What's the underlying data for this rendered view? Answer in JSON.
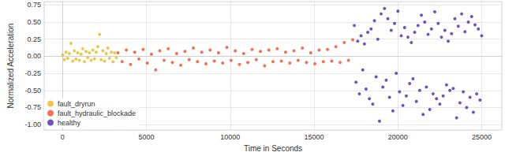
{
  "chart_data": {
    "type": "scatter",
    "x_label": "Time in Seconds",
    "y_label": "Normalized Acceleration",
    "xlim": [
      -1100,
      26200
    ],
    "xticks": [
      0,
      5000,
      10000,
      15000,
      20000,
      25000
    ],
    "ylim": [
      -1.08,
      0.8
    ],
    "yticks": [
      {
        "value": -1.0,
        "label": "-1.00"
      },
      {
        "value": -0.75,
        "label": "-0.75"
      },
      {
        "value": -0.5,
        "label": "-0.50"
      },
      {
        "value": -0.25,
        "label": "-0.25"
      },
      {
        "value": 0.0,
        "label": "0.00"
      },
      {
        "value": 0.25,
        "label": "0.25"
      },
      {
        "value": 0.5,
        "label": "0.50"
      },
      {
        "value": 0.75,
        "label": "0.75"
      }
    ],
    "grid": true,
    "legend": "lower left",
    "marker": "circle",
    "series": [
      {
        "name": "fault_dryrun",
        "color": "#e6b91e",
        "x": [
          0,
          100,
          200,
          300,
          400,
          500,
          600,
          700,
          800,
          900,
          1000,
          1100,
          1200,
          1300,
          1400,
          1500,
          1600,
          1700,
          1800,
          1900,
          2000,
          2100,
          2200,
          2300,
          2400,
          2500,
          2600,
          2700,
          2800,
          2900,
          3000,
          3100,
          3200
        ],
        "values": [
          0.02,
          -0.05,
          0.06,
          -0.03,
          0.04,
          0.19,
          -0.07,
          0.08,
          -0.04,
          0.05,
          -0.06,
          0.03,
          0.11,
          -0.08,
          0.07,
          -0.02,
          0.05,
          -0.06,
          0.09,
          -0.04,
          0.06,
          0.14,
          0.32,
          -0.05,
          0.08,
          -0.07,
          0.04,
          0.12,
          -0.03,
          0.06,
          -0.08,
          0.05,
          -0.02
        ]
      },
      {
        "name": "fault_hydraulic_blockade",
        "color": "#f24a2a",
        "x": [
          3300,
          3550,
          3800,
          4050,
          4300,
          4550,
          4800,
          5050,
          5300,
          5550,
          5800,
          6050,
          6300,
          6550,
          6800,
          7050,
          7300,
          7550,
          7800,
          8050,
          8300,
          8550,
          8800,
          9050,
          9300,
          9550,
          9800,
          10050,
          10300,
          10550,
          10800,
          11050,
          11300,
          11550,
          11800,
          12050,
          12300,
          12550,
          12800,
          13050,
          13300,
          13550,
          13800,
          14050,
          14300,
          14550,
          14800,
          15050,
          15300,
          15550,
          15800,
          16050,
          16300,
          16550,
          16800,
          17050,
          17300
        ],
        "values": [
          0.05,
          -0.08,
          0.09,
          -0.12,
          0.06,
          -0.04,
          0.1,
          -0.1,
          0.03,
          -0.2,
          0.08,
          -0.06,
          0.11,
          -0.09,
          0.04,
          -0.13,
          0.07,
          -0.05,
          0.12,
          -0.08,
          0.06,
          -0.11,
          0.09,
          -0.07,
          0.05,
          -0.1,
          0.13,
          -0.06,
          0.08,
          -0.12,
          0.04,
          -0.09,
          0.1,
          -0.05,
          0.07,
          -0.14,
          0.09,
          -0.08,
          0.11,
          -0.07,
          0.06,
          -0.1,
          0.08,
          -0.06,
          0.12,
          -0.09,
          0.05,
          -0.11,
          0.09,
          -0.08,
          0.1,
          -0.07,
          0.14,
          -0.09,
          0.2,
          -0.06,
          0.24
        ]
      },
      {
        "name": "healthy",
        "color": "#4b26b2",
        "x": [
          17400,
          17500,
          17600,
          17700,
          17800,
          17900,
          18000,
          18100,
          18200,
          18300,
          18400,
          18500,
          18600,
          18700,
          18800,
          18900,
          19000,
          19100,
          19200,
          19300,
          19400,
          19500,
          19600,
          19700,
          19800,
          19900,
          20000,
          20100,
          20200,
          20300,
          20400,
          20500,
          20600,
          20700,
          20800,
          20900,
          21000,
          21100,
          21200,
          21300,
          21400,
          21500,
          21600,
          21700,
          21800,
          21900,
          22000,
          22100,
          22200,
          22300,
          22400,
          22500,
          22600,
          22700,
          22800,
          22900,
          23000,
          23100,
          23200,
          23300,
          23400,
          23500,
          23600,
          23700,
          23800,
          23900,
          24000,
          24100,
          24200,
          24300,
          24400,
          24500,
          24600,
          24700,
          24800,
          24900,
          25000
        ],
        "values": [
          0.45,
          -0.38,
          0.22,
          -0.55,
          0.3,
          -0.2,
          0.18,
          -0.48,
          0.35,
          -0.62,
          0.4,
          -0.7,
          0.52,
          -0.3,
          0.25,
          -0.95,
          0.62,
          -0.45,
          0.7,
          -0.35,
          0.55,
          -0.6,
          0.38,
          -0.8,
          0.48,
          -0.25,
          0.66,
          -0.52,
          0.3,
          -0.72,
          0.42,
          -0.58,
          0.28,
          -0.4,
          0.2,
          -0.33,
          0.35,
          -0.66,
          0.45,
          -0.5,
          0.6,
          -0.85,
          0.5,
          -0.45,
          0.32,
          -0.78,
          0.4,
          -0.55,
          0.65,
          -0.62,
          0.48,
          -0.7,
          0.28,
          -0.58,
          0.38,
          -0.42,
          0.22,
          -0.5,
          0.33,
          -0.47,
          0.55,
          -0.9,
          0.44,
          -0.68,
          0.62,
          -0.52,
          0.36,
          -0.75,
          0.5,
          -0.6,
          0.58,
          -0.82,
          0.46,
          -0.55,
          0.4,
          -0.64,
          0.3
        ]
      }
    ]
  }
}
